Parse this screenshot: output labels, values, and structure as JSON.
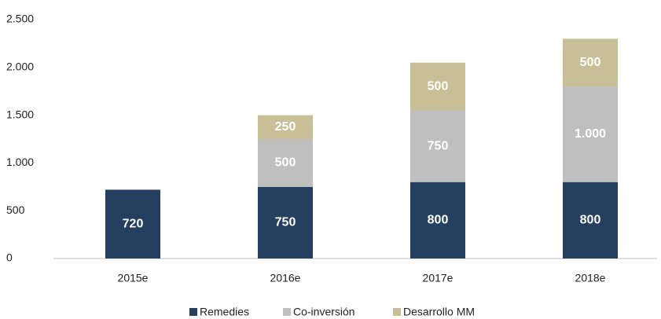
{
  "chart_data": {
    "type": "stacked-bar",
    "categories": [
      "2015e",
      "2016e",
      "2017e",
      "2018e"
    ],
    "series": [
      {
        "name": "Remedies",
        "color": "#253f60",
        "values": [
          720,
          750,
          800,
          800
        ]
      },
      {
        "name": "Co-inversión",
        "color": "#bfbfbf",
        "values": [
          null,
          500,
          750,
          1000
        ],
        "value_labels": [
          null,
          "500",
          "750",
          "1.000"
        ]
      },
      {
        "name": "Desarrollo MM",
        "color": "#c8bf96",
        "values": [
          null,
          250,
          500,
          500
        ]
      }
    ],
    "ylim": [
      0,
      2500
    ],
    "yticks": [
      0,
      500,
      {
        "value": 1000,
        "label": "1.000"
      },
      {
        "value": 1500,
        "label": "1.500"
      },
      {
        "value": 2000,
        "label": "2.000"
      },
      {
        "value": 2500,
        "label": "2.500"
      }
    ],
    "grid": false,
    "legend": "bottom"
  }
}
